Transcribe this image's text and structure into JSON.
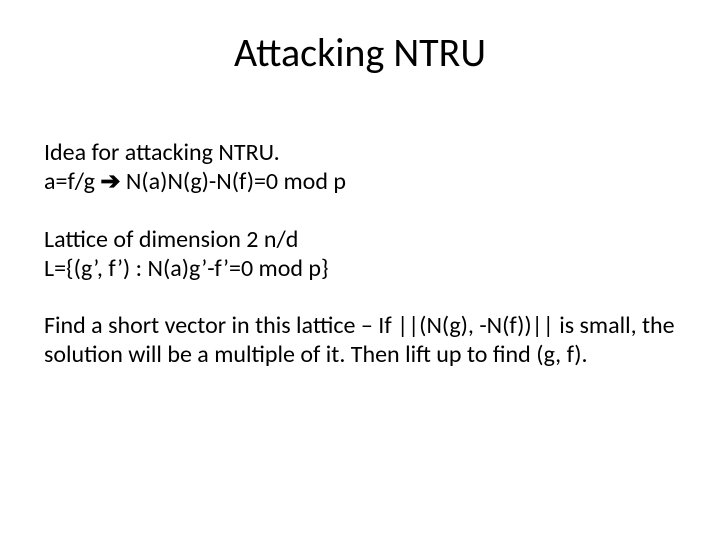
{
  "colors": {
    "background": "#ffffff",
    "text": "#000000"
  },
  "typography": {
    "title_fontsize": 40,
    "body_fontsize": 24,
    "font_family": "Calibri"
  },
  "slide": {
    "title": "Attacking NTRU",
    "paragraphs": {
      "p1_line1": "Idea for attacking NTRU.",
      "p1_line2_a": "a=f/g ",
      "p1_line2_arrow": "➔",
      "p1_line2_b": " N(a)N(g)-N(f)=0 mod p",
      "p2_line1": "Lattice of dimension 2 n/d",
      "p2_line2": "L={(g’, f’) : N(a)g’-f’=0 mod p}",
      "p3": "Find a short vector in this lattice – If ||(N(g), -N(f))|| is small, the solution will be a multiple of it.  Then lift up to find (g, f)."
    }
  }
}
